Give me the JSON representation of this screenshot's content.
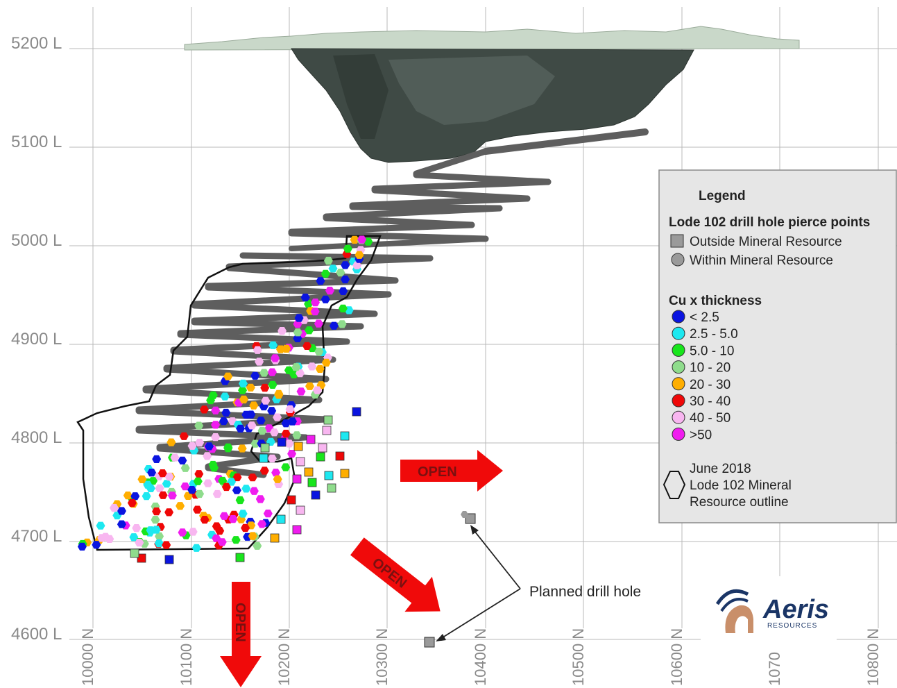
{
  "levels": [
    "5200 L",
    "5100 L",
    "5000 L",
    "4900 L",
    "4800 L",
    "4700 L",
    "4600 L"
  ],
  "northings": [
    "10000 N",
    "10100 N",
    "10200 N",
    "10300 N",
    "10400 N",
    "10500 N",
    "10600 N",
    "1070",
    "10800 N"
  ],
  "legend": {
    "title": "Legend",
    "pierce_heading": "Lode 102 drill hole pierce points",
    "outside_label": "Outside Mineral Resource",
    "within_label": "Within Mineral Resource",
    "cu_heading": "Cu x thickness",
    "bins": [
      {
        "label": "< 2.5",
        "color": "#0a14e0"
      },
      {
        "label": "2.5 - 5.0",
        "color": "#1de8f0"
      },
      {
        "label": "5.0 - 10",
        "color": "#18e51c"
      },
      {
        "label": "10 - 20",
        "color": "#8fdc8c"
      },
      {
        "label": "20 - 30",
        "color": "#ffae00"
      },
      {
        "label": "30 - 40",
        "color": "#ef0707"
      },
      {
        "label": "40 - 50",
        "color": "#f8b6f0"
      },
      {
        "label": ">50",
        "color": "#f01cef"
      }
    ],
    "outline_lines": [
      "June 2018",
      "Lode 102 Mineral",
      "Resource outline"
    ]
  },
  "open_label": "OPEN",
  "planned_label": "Planned drill hole",
  "logo": {
    "name": "Aeris",
    "sub": "RESOURCES"
  },
  "colors": {
    "pit": "#3f4a45",
    "surface": "#c9d8c9",
    "decline": "#5e5e5e",
    "arrow": "#f00a0a",
    "legend_bg": "#e6e6e6"
  }
}
